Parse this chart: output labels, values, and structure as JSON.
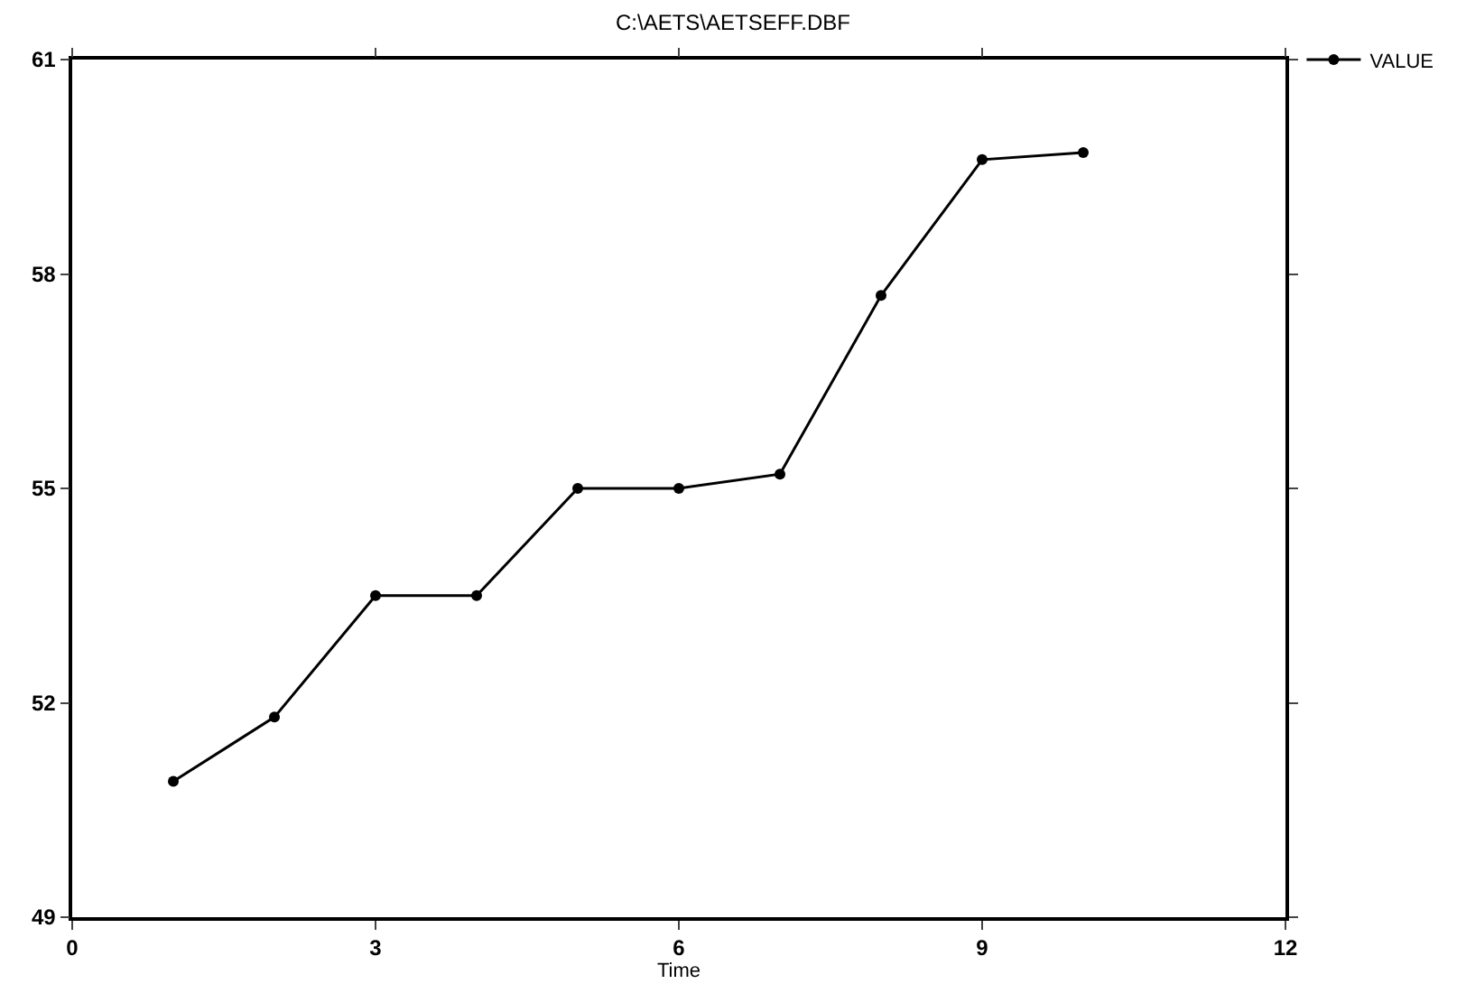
{
  "chart_data": {
    "type": "line",
    "title": "C:\\AETS\\AETSEFF.DBF",
    "xlabel": "Time",
    "x": [
      1,
      2,
      3,
      4,
      5,
      6,
      7,
      8,
      9,
      10
    ],
    "series": [
      {
        "name": "VALUE",
        "color": "#000000",
        "values": [
          50.9,
          51.8,
          53.5,
          53.5,
          55.0,
          55.0,
          55.2,
          57.7,
          59.6,
          59.7
        ]
      }
    ],
    "xlim": [
      0,
      12
    ],
    "xticks": [
      0,
      3,
      6,
      9,
      12
    ],
    "ylim": [
      49,
      61
    ],
    "yticks": [
      49,
      52,
      55,
      58,
      61
    ],
    "marker": "circle",
    "line_style": "solid",
    "legend": "top right",
    "grid": false
  }
}
